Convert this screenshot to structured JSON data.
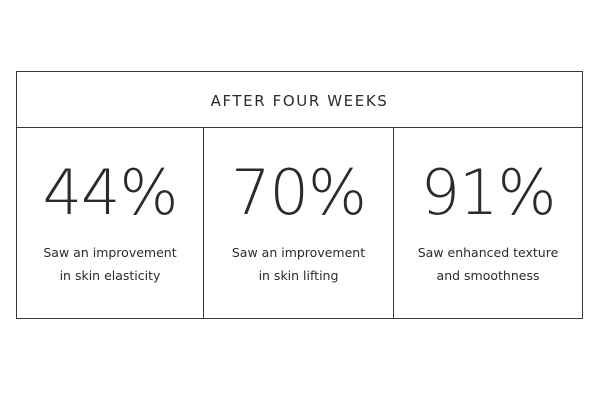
{
  "header": {
    "title": "AFTER FOUR WEEKS"
  },
  "stats": [
    {
      "value": "44%",
      "caption_line1": "Saw an improvement",
      "caption_line2": "in skin elasticity"
    },
    {
      "value": "70%",
      "caption_line1": "Saw an improvement",
      "caption_line2": "in skin lifting"
    },
    {
      "value": "91%",
      "caption_line1": "Saw enhanced texture",
      "caption_line2": "and smoothness"
    }
  ],
  "colors": {
    "border": "#3a3a3a",
    "text": "#2b2b2b",
    "background": "#ffffff"
  }
}
